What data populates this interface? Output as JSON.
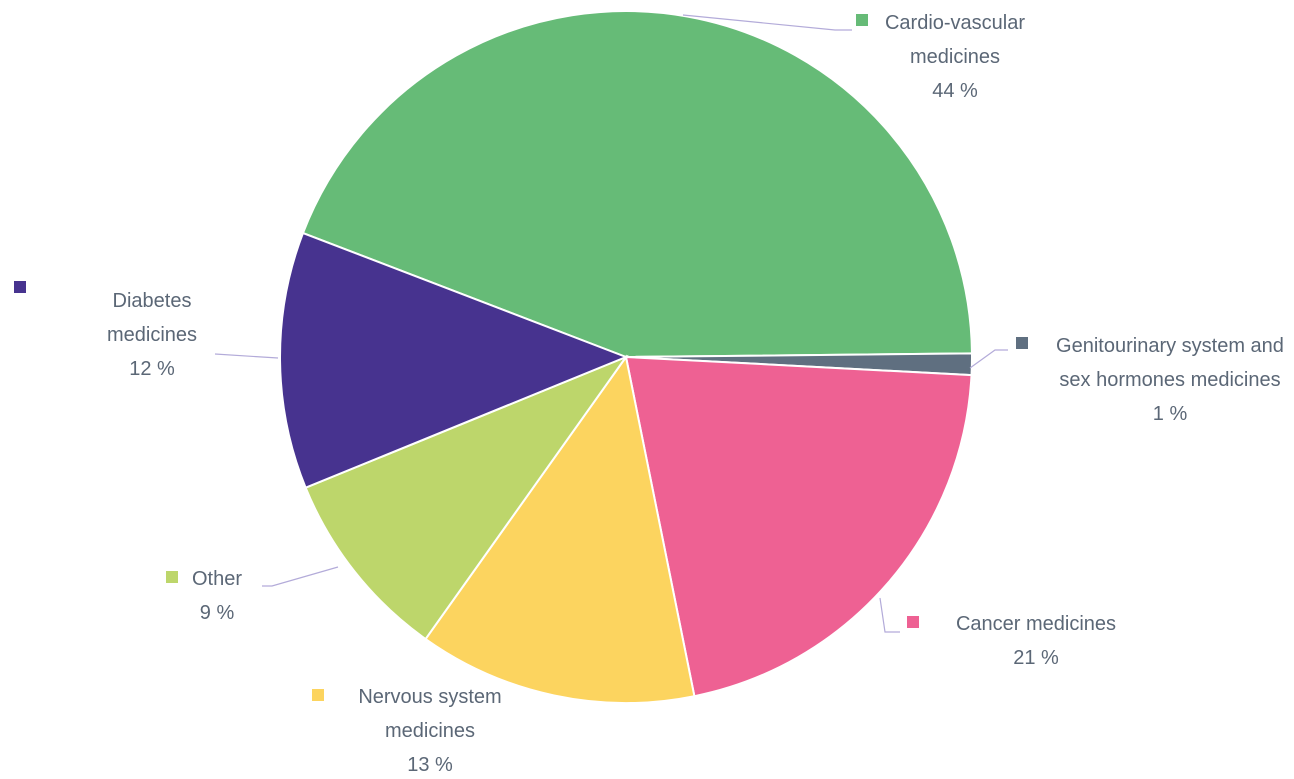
{
  "chart_data": {
    "type": "pie",
    "categories": [
      "Cardio-vascular medicines",
      "Genitourinary system and sex hormones medicines",
      "Cancer medicines",
      "Nervous system medicines",
      "Other",
      "Diabetes medicines"
    ],
    "values": [
      44,
      1,
      21,
      13,
      9,
      12
    ],
    "value_labels": [
      "44 %",
      "1 %",
      "21 %",
      "13 %",
      "9 %",
      "12 %"
    ],
    "colors": [
      "#66bb77",
      "#5f6f80",
      "#ee6193",
      "#fcd45f",
      "#bdd66b",
      "#47338f"
    ]
  }
}
